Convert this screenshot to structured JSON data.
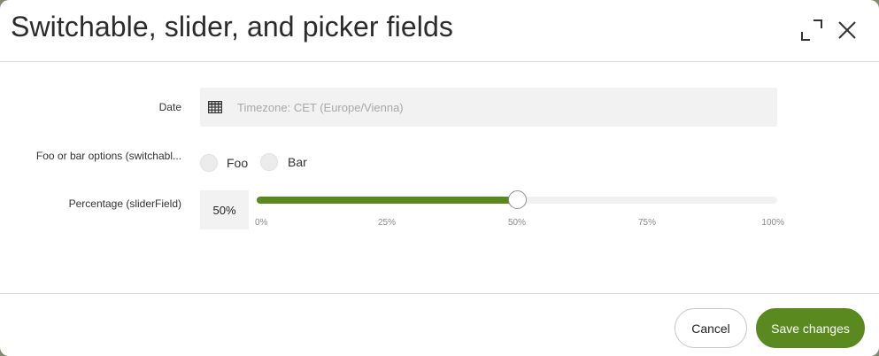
{
  "dialog": {
    "title": "Switchable, slider, and picker fields",
    "maximize_icon": "maximize-icon",
    "close_icon": "close-icon"
  },
  "form": {
    "date": {
      "label": "Date",
      "icon": "calendar-icon",
      "value": "",
      "placeholder": "Timezone: CET (Europe/Vienna)"
    },
    "options": {
      "label": "Foo or bar options (switchabl...",
      "choices": [
        "Foo",
        "Bar"
      ],
      "selected": null
    },
    "percentage": {
      "label": "Percentage (sliderField)",
      "value_display": "50%",
      "value": 50,
      "min": 0,
      "max": 100,
      "ticks": [
        "0%",
        "25%",
        "50%",
        "75%",
        "100%"
      ]
    }
  },
  "footer": {
    "cancel_label": "Cancel",
    "save_label": "Save changes"
  },
  "colors": {
    "accent": "#5a8a1f"
  }
}
